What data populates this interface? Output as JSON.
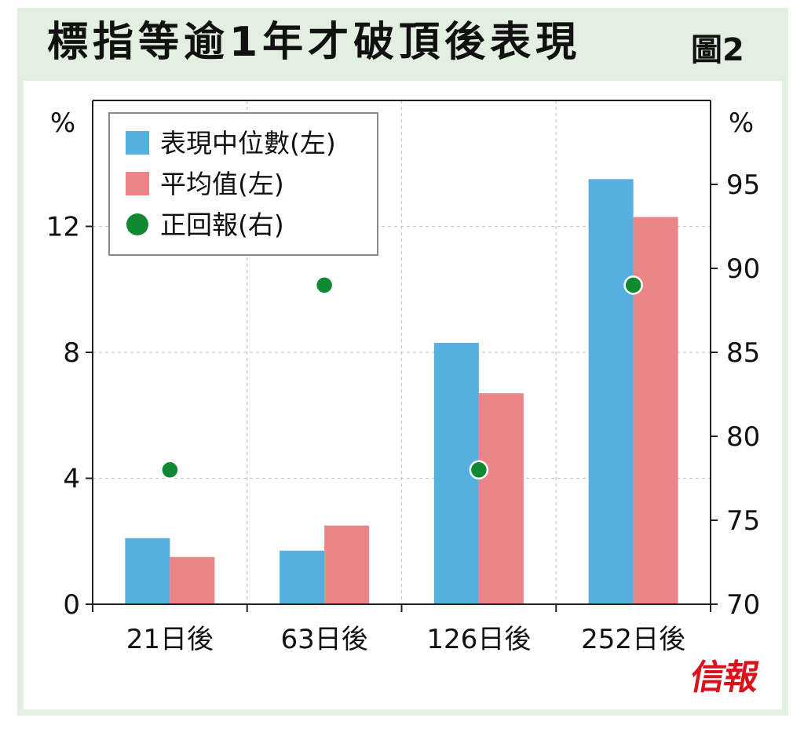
{
  "title": "標指等逾1年才破頂後表現",
  "figure_label": "圖2",
  "logo_text": "信報",
  "chart_data": {
    "type": "bar",
    "title": "標指等逾1年才破頂後表現",
    "categories": [
      "21日後",
      "63日後",
      "126日後",
      "252日後"
    ],
    "series": [
      {
        "name": "表現中位數(左)",
        "type": "bar",
        "axis": "left",
        "color": "#55b0df",
        "values": [
          2.1,
          1.7,
          8.3,
          13.5
        ]
      },
      {
        "name": "平均值(左)",
        "type": "bar",
        "axis": "left",
        "color": "#ec8588",
        "values": [
          1.5,
          2.5,
          6.7,
          12.3
        ]
      },
      {
        "name": "正回報(右)",
        "type": "scatter",
        "axis": "right",
        "color": "#0f8a33",
        "values": [
          78,
          89,
          78,
          89
        ]
      }
    ],
    "left_axis": {
      "unit": "%",
      "ylim": [
        0,
        16
      ],
      "ticks": [
        0,
        4,
        8,
        12
      ]
    },
    "right_axis": {
      "unit": "%",
      "ylim": [
        70,
        100
      ],
      "ticks": [
        70,
        75,
        80,
        85,
        90,
        95
      ]
    },
    "grid": true,
    "legend_position": "top-left"
  }
}
